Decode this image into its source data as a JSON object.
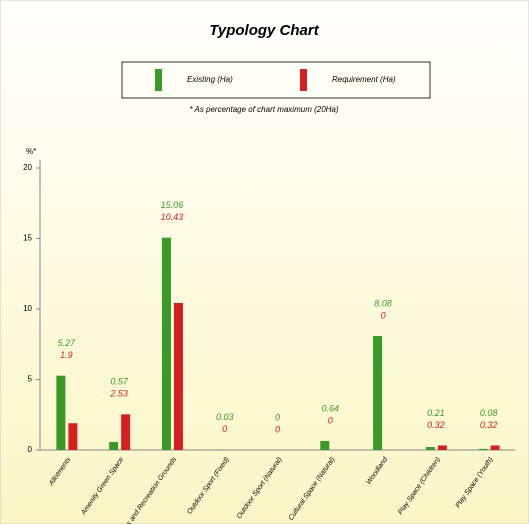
{
  "chart_data": {
    "type": "bar",
    "title": "Typology Chart",
    "subtitle": "* As percentage of chart maximum (20Ha)",
    "y_label": "%*",
    "categories": [
      "Allotments",
      "Amenity Green Space",
      "Parks and Recreation Grounds",
      "Outdoor Sport (Fixed)",
      "Outdoor Sport (Natural)",
      "Cultural Space (Natural)",
      "Woodland",
      "Play Space (Children)",
      "Play Space (Youth)"
    ],
    "series": [
      {
        "name": "Existing (Ha)",
        "color": "#3a9a28",
        "values": [
          5.27,
          0.57,
          15.06,
          0.03,
          0,
          0.64,
          8.08,
          0.21,
          0.08
        ]
      },
      {
        "name": "Requirement (Ha)",
        "color": "#d42020",
        "values": [
          1.9,
          2.53,
          10.43,
          0,
          0,
          0,
          0,
          0.32,
          0.32
        ]
      }
    ],
    "ylim": [
      0,
      20
    ],
    "yticks": [
      0,
      5,
      10,
      15,
      20
    ]
  }
}
